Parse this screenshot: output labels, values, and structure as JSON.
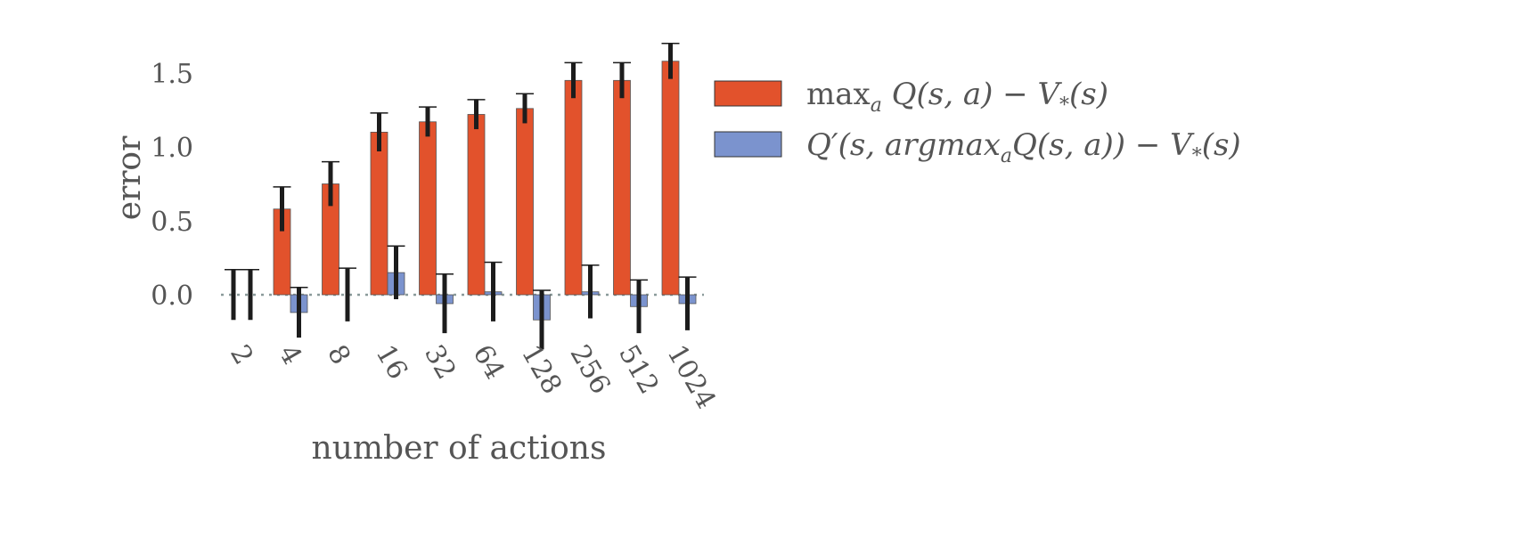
{
  "chart_data": {
    "type": "bar",
    "categories": [
      "2",
      "4",
      "8",
      "16",
      "32",
      "64",
      "128",
      "256",
      "512",
      "1024"
    ],
    "ylabel": "error",
    "xlabel": "number of actions",
    "yticks": [
      "0.0",
      "0.5",
      "1.0",
      "1.5"
    ],
    "ylim": [
      -0.2,
      1.72
    ],
    "grid": false,
    "legend_position": "right",
    "series": [
      {
        "name": "max_a Q(s, a) − V_*(s)",
        "legend_parts": [
          "max",
          "a",
          " Q(s, a) − V",
          "*",
          "(s)"
        ],
        "color": "#E2522C",
        "values": [
          0.0,
          0.58,
          0.75,
          1.1,
          1.17,
          1.22,
          1.26,
          1.45,
          1.45,
          1.58
        ],
        "errors": [
          0.17,
          0.15,
          0.15,
          0.13,
          0.1,
          0.1,
          0.1,
          0.12,
          0.12,
          0.12
        ]
      },
      {
        "name": "Q′(s, argmax_a Q(s, a)) − V_*(s)",
        "legend_parts": [
          "Q′(s, argmax",
          "a",
          "Q(s, a)) − V",
          "*",
          "(s)"
        ],
        "color": "#7B93CE",
        "values": [
          0.0,
          -0.12,
          0.0,
          0.15,
          -0.06,
          0.02,
          -0.17,
          0.02,
          -0.08,
          -0.06
        ],
        "errors": [
          0.17,
          0.17,
          0.18,
          0.18,
          0.2,
          0.2,
          0.2,
          0.18,
          0.18,
          0.18
        ]
      }
    ]
  }
}
